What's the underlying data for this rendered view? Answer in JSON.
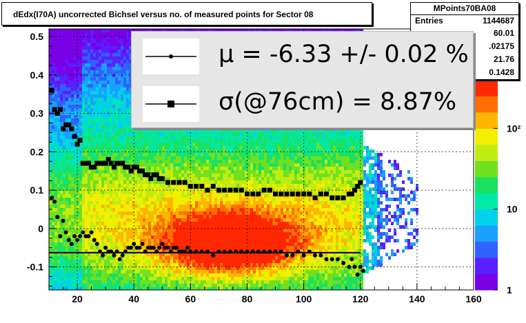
{
  "title": "dEdx(I70A) uncorrected Bichsel versus no. of measured points for Sector 08",
  "stats": {
    "name": "MPoints70BA08",
    "rows": [
      {
        "label": "Entries",
        "value": "1144687"
      },
      {
        "label": "",
        "value": "60.01"
      },
      {
        "label": "",
        "value": ".02175"
      },
      {
        "label": "",
        "value": "21.76"
      },
      {
        "label": "",
        "value": "0.1428"
      }
    ]
  },
  "legend": {
    "mu": "μ  = -6.33 +/-  0.02 %",
    "sigma": "σ(@76cm) =  8.87%"
  },
  "palette": {
    "heat": [
      "#7a00e6",
      "#5a1fff",
      "#2f62ff",
      "#1aa0ff",
      "#00d2ea",
      "#00e8a8",
      "#1ce060",
      "#70e020",
      "#c0ec10",
      "#f2ee00",
      "#ffb400",
      "#ff7000",
      "#ff2800"
    ],
    "marker": "#000000"
  },
  "chart_data": {
    "type": "heatmap",
    "xlim": [
      10,
      160
    ],
    "ylim": [
      -0.16,
      0.52
    ],
    "x_ticks": [
      20,
      40,
      60,
      80,
      100,
      120,
      140,
      160
    ],
    "y_ticks": [
      -0.1,
      0,
      0.1,
      0.2,
      0.3,
      0.4,
      0.5
    ],
    "y_tick_labels": [
      "-0.1",
      "0",
      "0.1",
      "0.2",
      "0.3",
      "0.4",
      "0.5"
    ],
    "z_scale": "log",
    "z_ticks": [
      1,
      10,
      100
    ],
    "z_tick_labels": [
      "1",
      "10",
      "10²"
    ],
    "grid": true,
    "series": [
      {
        "marker": "circle",
        "x": [
          11,
          12,
          13,
          14,
          15,
          16,
          17,
          18,
          19,
          20,
          21,
          22,
          23,
          24,
          25,
          26,
          27,
          28,
          29,
          30,
          31,
          32,
          33,
          34,
          35,
          36,
          37,
          38,
          39,
          40,
          41,
          42,
          43,
          44,
          45,
          46,
          47,
          48,
          49,
          50,
          51,
          52,
          53,
          54,
          55,
          56,
          57,
          58,
          59,
          60,
          62,
          64,
          66,
          68,
          70,
          72,
          74,
          76,
          78,
          80,
          82,
          84,
          86,
          88,
          90,
          92,
          94,
          96,
          98,
          100,
          102,
          104,
          106,
          108,
          110,
          112,
          114,
          116,
          117,
          118,
          119,
          120,
          121
        ],
        "y": [
          0.08,
          0.07,
          0.03,
          -0.02,
          0.02,
          -0.01,
          -0.03,
          -0.04,
          -0.02,
          -0.03,
          -0.02,
          -0.01,
          -0.02,
          -0.02,
          -0.01,
          -0.03,
          -0.04,
          -0.06,
          -0.07,
          -0.05,
          -0.06,
          -0.06,
          -0.07,
          -0.06,
          -0.08,
          -0.07,
          -0.06,
          -0.05,
          -0.05,
          -0.04,
          -0.05,
          -0.05,
          -0.04,
          -0.06,
          -0.05,
          -0.05,
          -0.05,
          -0.06,
          -0.05,
          -0.04,
          -0.05,
          -0.05,
          -0.06,
          -0.05,
          -0.05,
          -0.06,
          -0.06,
          -0.06,
          -0.05,
          -0.06,
          -0.06,
          -0.06,
          -0.06,
          -0.07,
          -0.06,
          -0.06,
          -0.06,
          -0.06,
          -0.06,
          -0.06,
          -0.06,
          -0.06,
          -0.06,
          -0.06,
          -0.06,
          -0.06,
          -0.07,
          -0.07,
          -0.06,
          -0.07,
          -0.06,
          -0.07,
          -0.07,
          -0.08,
          -0.08,
          -0.08,
          -0.09,
          -0.1,
          -0.08,
          -0.1,
          -0.12,
          -0.1,
          -0.11
        ]
      },
      {
        "marker": "square",
        "x": [
          11,
          12,
          13,
          14,
          15,
          16,
          17,
          18,
          19,
          20,
          21,
          22,
          23,
          24,
          25,
          26,
          27,
          28,
          29,
          30,
          31,
          32,
          33,
          34,
          35,
          36,
          37,
          38,
          39,
          40,
          41,
          42,
          43,
          44,
          45,
          46,
          47,
          48,
          49,
          50,
          52,
          54,
          56,
          58,
          60,
          62,
          64,
          66,
          68,
          70,
          72,
          74,
          76,
          78,
          80,
          82,
          84,
          86,
          88,
          90,
          92,
          94,
          96,
          98,
          100,
          102,
          104,
          106,
          108,
          110,
          112,
          114,
          116,
          117,
          118,
          119,
          120
        ],
        "y": [
          0.36,
          0.31,
          0.3,
          0.31,
          0.26,
          0.27,
          0.27,
          0.26,
          0.24,
          0.22,
          0.23,
          0.17,
          0.17,
          0.17,
          0.16,
          0.16,
          0.17,
          0.17,
          0.17,
          0.17,
          0.18,
          0.17,
          0.16,
          0.17,
          0.17,
          0.17,
          0.16,
          0.16,
          0.15,
          0.16,
          0.16,
          0.15,
          0.15,
          0.14,
          0.14,
          0.13,
          0.14,
          0.14,
          0.13,
          0.13,
          0.12,
          0.12,
          0.12,
          0.12,
          0.11,
          0.11,
          0.11,
          0.1,
          0.11,
          0.1,
          0.1,
          0.1,
          0.1,
          0.1,
          0.09,
          0.09,
          0.09,
          0.1,
          0.1,
          0.09,
          0.09,
          0.09,
          0.09,
          0.09,
          0.09,
          0.09,
          0.08,
          0.09,
          0.09,
          0.08,
          0.08,
          0.08,
          0.09,
          0.09,
          0.1,
          0.11,
          0.12
        ]
      }
    ],
    "fit_line": {
      "y": -0.063,
      "x_range": [
        10,
        120
      ]
    }
  }
}
